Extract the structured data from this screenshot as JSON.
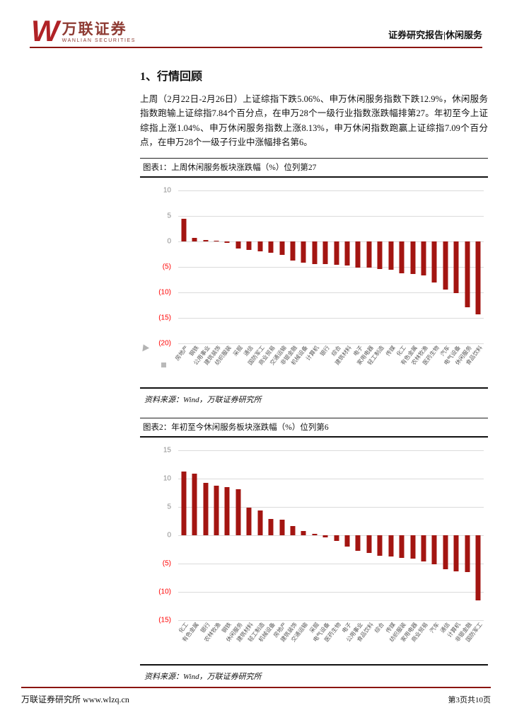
{
  "header": {
    "logo": {
      "letter": "W",
      "brand_cn": "万联证券",
      "brand_en": "WANLIAN SECURITIES"
    },
    "report_label": "证券研究报告|休闲服务"
  },
  "section": {
    "title": "1、行情回顾",
    "paragraph": "上周（2月22日-2月26日）上证综指下跌5.06%、申万休闲服务指数下跌12.9%，休闲服务指数跑输上证综指7.84个百分点，在申万28个一级行业指数涨跌幅排第27。年初至今上证综指上涨1.04%、申万休闲服务指数上涨8.13%，申万休闲指数跑赢上证综指7.09个百分点，在申万28个一级子行业中涨幅排名第6。"
  },
  "figure1": {
    "title": "图表1：上周休闲服务板块涨跌幅（%）位列第27",
    "source": "资料来源：Wind，万联证券研究所"
  },
  "figure2": {
    "title": "图表2：年初至今休闲服务板块涨跌幅（%）位列第6",
    "source": "资料来源：Wind，万联证券研究所"
  },
  "footer": {
    "left": "万联证券研究所 www.wlzq.cn",
    "right": "第3页共10页"
  },
  "colors": {
    "brand_red": "#B02226",
    "brand_text": "#8E3B33",
    "rule_red": "#8B1510",
    "bar_red": "#A31511",
    "tick_negative": "#FF0000",
    "tick_positive": "#8C8C8C",
    "grid": "#DBDBDB"
  },
  "chart_data": [
    {
      "type": "bar",
      "title": "上周休闲服务板块涨跌幅（%）位列第27",
      "xlabel": "",
      "ylabel": "",
      "ylim": [
        -20,
        10
      ],
      "yticks": [
        10,
        5,
        0,
        -5,
        -10,
        -15,
        -20
      ],
      "ytick_labels": [
        "10",
        "5",
        "0",
        "(5)",
        "(10)",
        "(15)",
        "(20)"
      ],
      "grid": true,
      "legend": null,
      "categories": [
        "房地产",
        "钢铁",
        "公用事业",
        "建筑装饰",
        "纺织服装",
        "采掘",
        "通信",
        "国防军工",
        "商业贸易",
        "交通运输",
        "非银金融",
        "机械设备",
        "计算机",
        "银行",
        "综合",
        "建筑材料",
        "电子",
        "家用电器",
        "轻工制造",
        "传媒",
        "化工",
        "有色金属",
        "农林牧渔",
        "医药生物",
        "汽车",
        "电气设备",
        "休闲服务",
        "食品饮料"
      ],
      "values": [
        4.5,
        0.7,
        0.3,
        0.1,
        -0.3,
        -1.4,
        -1.6,
        -2.0,
        -2.2,
        -2.7,
        -3.8,
        -4.2,
        -4.4,
        -4.5,
        -4.6,
        -4.7,
        -5.1,
        -5.2,
        -5.4,
        -5.5,
        -6.2,
        -6.4,
        -6.6,
        -8.1,
        -9.4,
        -10.1,
        -12.9,
        -14.3
      ]
    },
    {
      "type": "bar",
      "title": "年初至今休闲服务板块涨跌幅（%）位列第6",
      "xlabel": "",
      "ylabel": "",
      "ylim": [
        -15,
        15
      ],
      "yticks": [
        15,
        10,
        5,
        0,
        -5,
        -10,
        -15
      ],
      "ytick_labels": [
        "15",
        "10",
        "5",
        "0",
        "(5)",
        "(10)",
        "(15)"
      ],
      "grid": true,
      "legend": null,
      "categories": [
        "化工",
        "有色金属",
        "银行",
        "农林牧渔",
        "钢铁",
        "休闲服务",
        "建筑材料",
        "轻工制造",
        "机械设备",
        "房地产",
        "建筑装饰",
        "交通运输",
        "采掘",
        "电气设备",
        "医药生物",
        "电子",
        "公用事业",
        "食品饮料",
        "综合",
        "传媒",
        "纺织服装",
        "家用电器",
        "商业贸易",
        "汽车",
        "通信",
        "计算机",
        "非银金融",
        "国防军工"
      ],
      "values": [
        11.3,
        10.9,
        9.2,
        8.7,
        8.5,
        8.1,
        4.9,
        4.4,
        2.9,
        2.8,
        1.6,
        0.7,
        0.2,
        -0.4,
        -1.0,
        -2.0,
        -2.7,
        -3.1,
        -3.6,
        -3.8,
        -4.0,
        -4.1,
        -4.6,
        -5.1,
        -6.0,
        -6.4,
        -6.5,
        -11.5
      ]
    }
  ]
}
